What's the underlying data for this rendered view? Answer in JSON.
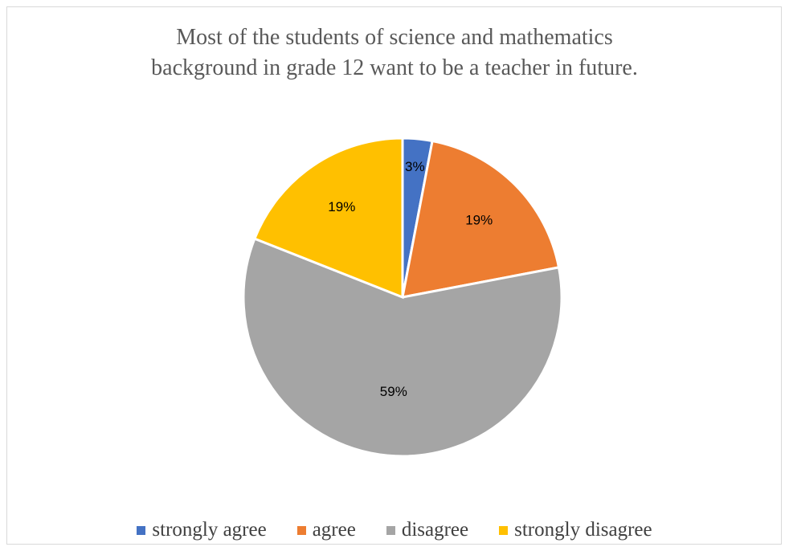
{
  "chart_data": {
    "type": "pie",
    "title": "Most of the students of science and mathematics background in grade 12 want to be a teacher in future.",
    "title_lines": [
      "Most of the students of science and mathematics",
      "background in grade 12 want to be a teacher in future."
    ],
    "categories": [
      "strongly agree",
      "agree",
      "disagree",
      "strongly disagree"
    ],
    "values": [
      3,
      19,
      59,
      19
    ],
    "labels": [
      "3%",
      "19%",
      "59%",
      "19%"
    ],
    "colors": [
      "#4472C4",
      "#ED7D31",
      "#A5A5A5",
      "#FFC000"
    ],
    "legend": "bottom",
    "start_angle": "12 o'clock",
    "direction": "clockwise"
  }
}
